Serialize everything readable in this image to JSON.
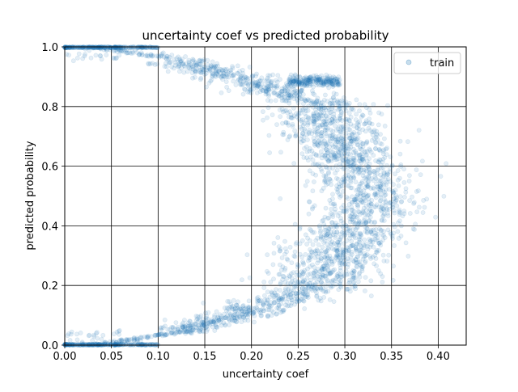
{
  "chart_data": {
    "type": "scatter",
    "title": "uncertainty coef vs predicted probability",
    "xlabel": "uncertainty coef",
    "ylabel": "predicted probability",
    "xlim": [
      0.0,
      0.43
    ],
    "ylim": [
      0.0,
      1.0
    ],
    "xticks": [
      "0.00",
      "0.05",
      "0.10",
      "0.15",
      "0.20",
      "0.25",
      "0.30",
      "0.35",
      "0.40"
    ],
    "xtick_values": [
      0.0,
      0.05,
      0.1,
      0.15,
      0.2,
      0.25,
      0.3,
      0.35,
      0.4
    ],
    "yticks": [
      "0.0",
      "0.2",
      "0.4",
      "0.6",
      "0.8",
      "1.0"
    ],
    "ytick_values": [
      0.0,
      0.2,
      0.4,
      0.6,
      0.8,
      1.0
    ],
    "grid": true,
    "legend_position": "top-right",
    "marker_alpha": 0.12,
    "series": [
      {
        "name": "train",
        "color": "#1f77b4",
        "shape": "symmetric-arc",
        "description_points": [
          {
            "x": 0.0,
            "upper": 1.0,
            "lower": 0.0
          },
          {
            "x": 0.05,
            "upper": 0.995,
            "lower": 0.005
          },
          {
            "x": 0.1,
            "upper": 0.98,
            "lower": 0.02
          },
          {
            "x": 0.15,
            "upper": 0.945,
            "lower": 0.055
          },
          {
            "x": 0.2,
            "upper": 0.91,
            "lower": 0.1
          },
          {
            "x": 0.25,
            "upper": 0.88,
            "lower": 0.18
          },
          {
            "x": 0.29,
            "upper": 0.89,
            "lower": 0.11
          },
          {
            "x": 0.32,
            "upper": 0.7,
            "lower": 0.3
          },
          {
            "x": 0.35,
            "upper": 0.6,
            "lower": 0.4
          },
          {
            "x": 0.4,
            "upper": 0.5,
            "lower": 0.5
          }
        ]
      }
    ]
  }
}
